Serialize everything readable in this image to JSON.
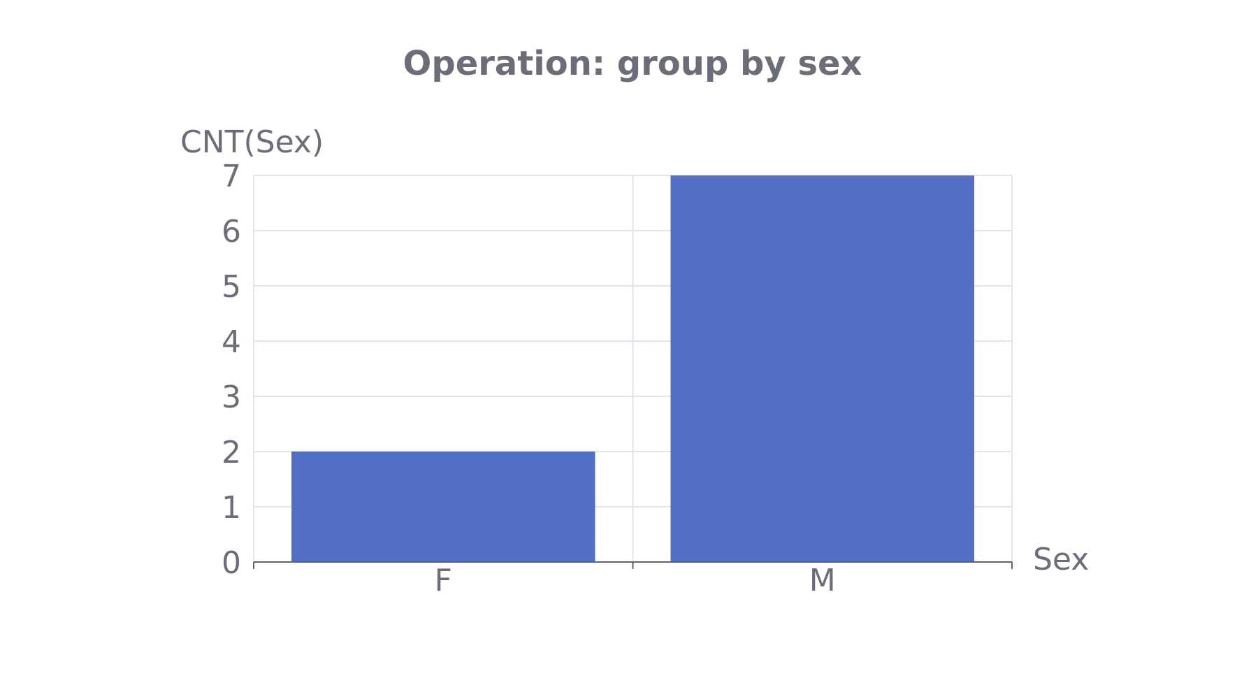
{
  "chart_data": {
    "type": "bar",
    "title": "Operation: group by sex",
    "xlabel": "Sex",
    "ylabel": "CNT(Sex)",
    "categories": [
      "F",
      "M"
    ],
    "values": [
      2,
      7
    ],
    "ylim": [
      0,
      7
    ],
    "yticks": [
      "0",
      "1",
      "2",
      "3",
      "4",
      "5",
      "6",
      "7"
    ],
    "grid": true,
    "bar_color": "#5470c6"
  }
}
